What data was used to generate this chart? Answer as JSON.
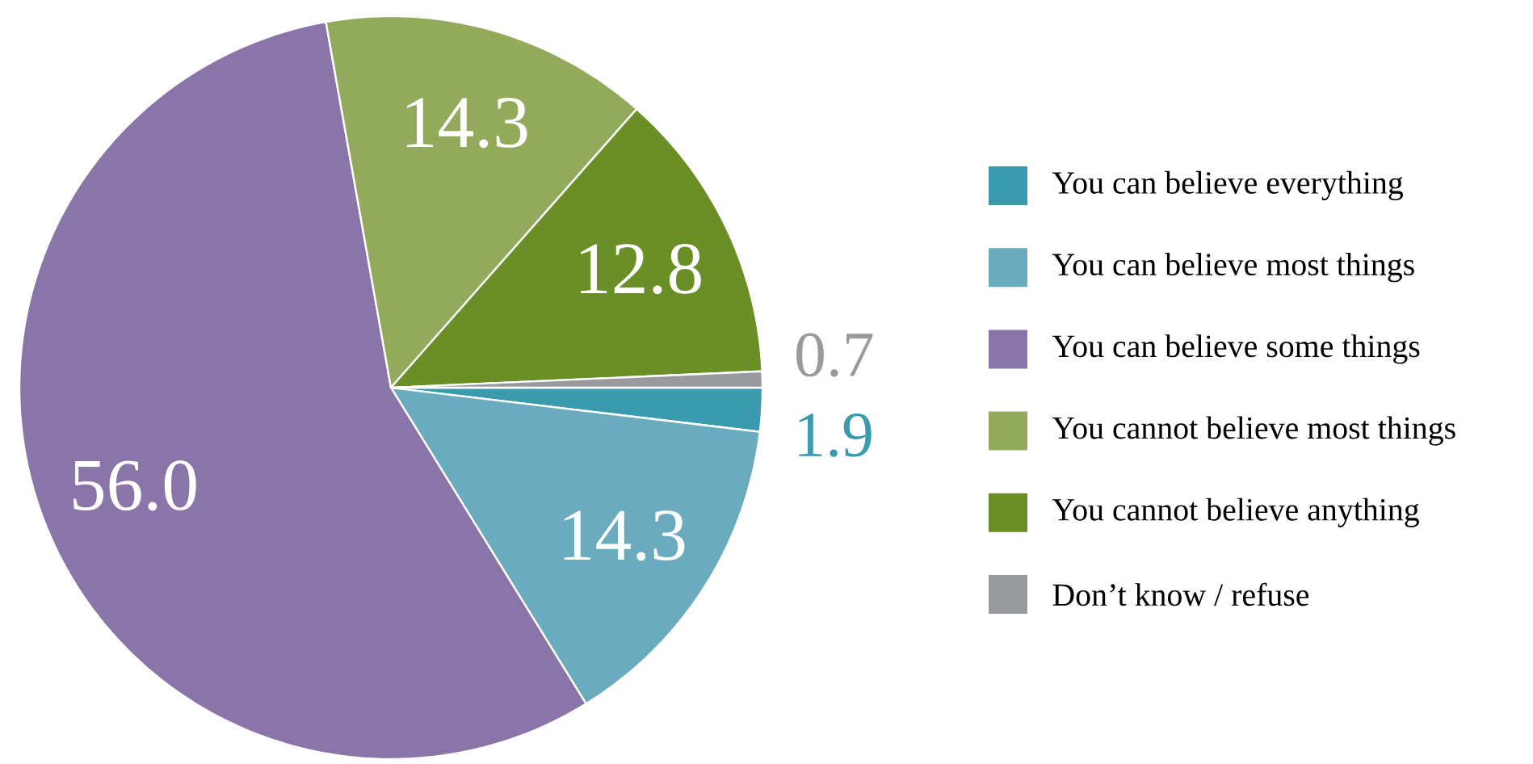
{
  "chart_data": {
    "type": "pie",
    "categories": [
      "You can believe everything",
      "You can believe most things",
      "You can believe some things",
      "You cannot believe most things",
      "You cannot believe anything",
      "Don’t know / refuse"
    ],
    "values": [
      1.9,
      14.3,
      56.0,
      14.3,
      12.8,
      0.7
    ],
    "colors": [
      "#3a9aae",
      "#6aabbe",
      "#8975a7",
      "#93aa5c",
      "#6b8f27",
      "#999a9e"
    ],
    "value_labels": [
      "1.9",
      "14.3",
      "56.0",
      "14.3",
      "12.8",
      "0.7"
    ],
    "legend": "right"
  }
}
